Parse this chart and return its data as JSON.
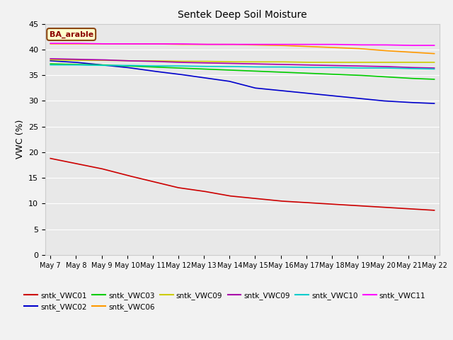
{
  "title": "Sentek Deep Soil Moisture",
  "ylabel": "VWC (%)",
  "annotation": "BA_arable",
  "ylim": [
    0,
    45
  ],
  "yticks": [
    0,
    5,
    10,
    15,
    20,
    25,
    30,
    35,
    40,
    45
  ],
  "x_labels": [
    "May 7",
    "May 8",
    "May 9",
    "May 10",
    "May 11",
    "May 12",
    "May 13",
    "May 14",
    "May 15",
    "May 16",
    "May 17",
    "May 18",
    "May 19",
    "May 20",
    "May 21",
    "May 22"
  ],
  "fig_bg": "#f2f2f2",
  "plot_bg": "#e8e8e8",
  "grid_color": "#ffffff",
  "series": [
    {
      "name": "sntk_VWC01",
      "color": "#cc0000",
      "y": [
        18.8,
        17.8,
        16.8,
        15.5,
        14.3,
        13.1,
        12.4,
        11.5,
        11.0,
        10.5,
        10.2,
        9.9,
        9.6,
        9.3,
        9.0,
        8.7
      ]
    },
    {
      "name": "sntk_VWC02",
      "color": "#0000cc",
      "y": [
        37.8,
        37.5,
        37.0,
        36.5,
        35.8,
        35.2,
        34.5,
        33.8,
        32.5,
        32.0,
        31.5,
        31.0,
        30.5,
        30.0,
        29.7,
        29.5
      ]
    },
    {
      "name": "sntk_VWC03",
      "color": "#00cc00",
      "y": [
        37.2,
        37.1,
        37.0,
        36.8,
        36.6,
        36.4,
        36.2,
        36.0,
        35.8,
        35.6,
        35.4,
        35.2,
        35.0,
        34.7,
        34.4,
        34.2
      ]
    },
    {
      "name": "sntk_VWC06",
      "color": "#ff9900",
      "y": [
        41.1,
        41.1,
        41.1,
        41.1,
        41.1,
        41.0,
        41.0,
        41.0,
        40.9,
        40.8,
        40.6,
        40.4,
        40.2,
        39.8,
        39.5,
        39.2
      ]
    },
    {
      "name": "sntk_VWC09",
      "color": "#cccc00",
      "y": [
        38.0,
        37.9,
        37.9,
        37.8,
        37.8,
        37.7,
        37.7,
        37.6,
        37.6,
        37.6,
        37.5,
        37.5,
        37.5,
        37.5,
        37.5,
        37.5
      ]
    },
    {
      "name": "sntk_VWC09",
      "color": "#aa00aa",
      "y": [
        38.2,
        38.1,
        38.0,
        37.8,
        37.7,
        37.5,
        37.4,
        37.3,
        37.2,
        37.1,
        37.0,
        36.9,
        36.8,
        36.7,
        36.5,
        36.4
      ]
    },
    {
      "name": "sntk_VWC10",
      "color": "#00cccc",
      "y": [
        37.0,
        37.0,
        36.9,
        36.9,
        36.8,
        36.8,
        36.7,
        36.7,
        36.6,
        36.6,
        36.5,
        36.5,
        36.4,
        36.4,
        36.3,
        36.2
      ]
    },
    {
      "name": "sntk_VWC11",
      "color": "#ff00ff",
      "y": [
        41.2,
        41.2,
        41.1,
        41.1,
        41.1,
        41.1,
        41.0,
        41.0,
        41.0,
        41.0,
        41.0,
        41.0,
        40.9,
        40.9,
        40.8,
        40.8
      ]
    }
  ],
  "legend_row1": [
    {
      "label": "sntk_VWC01",
      "color": "#cc0000"
    },
    {
      "label": "sntk_VWC02",
      "color": "#0000cc"
    },
    {
      "label": "sntk_VWC03",
      "color": "#00cc00"
    },
    {
      "label": "sntk_VWC06",
      "color": "#ff9900"
    },
    {
      "label": "sntk_VWC09",
      "color": "#cccc00"
    },
    {
      "label": "sntk_VWC09",
      "color": "#aa00aa"
    }
  ],
  "legend_row2": [
    {
      "label": "sntk_VWC10",
      "color": "#00cccc"
    },
    {
      "label": "sntk_VWC11",
      "color": "#ff00ff"
    }
  ]
}
